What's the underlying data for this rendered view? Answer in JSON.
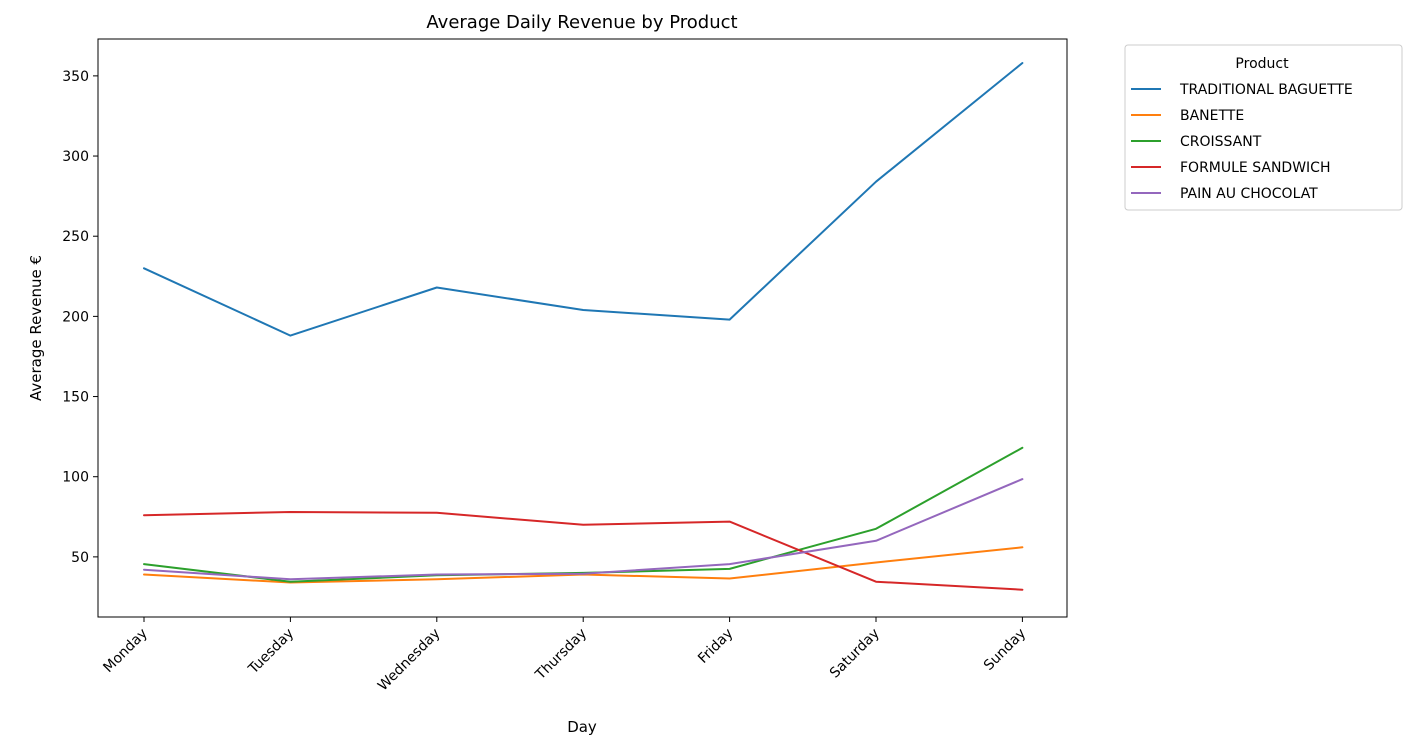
{
  "chart_data": {
    "type": "line",
    "title": "Average Daily Revenue by Product",
    "xlabel": "Day",
    "ylabel": "Average Revenue €",
    "categories": [
      "Monday",
      "Tuesday",
      "Wednesday",
      "Thursday",
      "Friday",
      "Saturday",
      "Sunday"
    ],
    "ylim": [
      12.5,
      373
    ],
    "yticks": [
      50,
      100,
      150,
      200,
      250,
      300,
      350
    ],
    "grid": false,
    "legend": {
      "title": "Product",
      "placement": "outside-top-right"
    },
    "series": [
      {
        "name": "TRADITIONAL BAGUETTE",
        "color": "#1f77b4",
        "values": [
          230,
          188,
          218,
          204,
          198,
          284,
          358
        ]
      },
      {
        "name": "BANETTE",
        "color": "#ff7f0e",
        "values": [
          39,
          34,
          36,
          39,
          36.5,
          46.5,
          56
        ]
      },
      {
        "name": "CROISSANT",
        "color": "#2ca02c",
        "values": [
          45.5,
          34.5,
          38.5,
          40,
          42.5,
          67.5,
          118
        ]
      },
      {
        "name": "FORMULE SANDWICH",
        "color": "#d62728",
        "values": [
          76,
          78,
          77.5,
          70,
          72,
          34.5,
          29.5
        ]
      },
      {
        "name": "PAIN AU CHOCOLAT",
        "color": "#9467bd",
        "values": [
          42,
          36,
          39,
          39.5,
          45.5,
          60,
          98.5
        ]
      }
    ]
  }
}
